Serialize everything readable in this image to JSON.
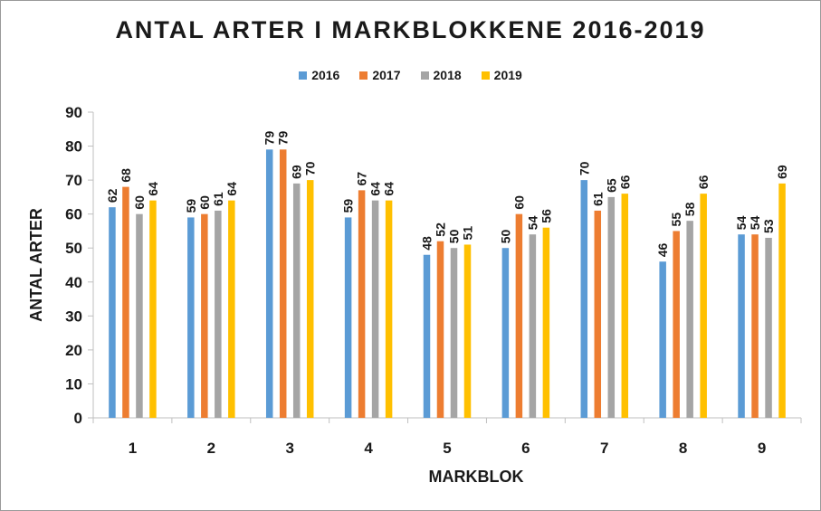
{
  "chart_data": {
    "type": "bar",
    "title": "ANTAL ARTER I MARKBLOKKENE 2016-2019",
    "xlabel": "MARKBLOK",
    "ylabel": "ANTAL ARTER",
    "categories": [
      "1",
      "2",
      "3",
      "4",
      "5",
      "6",
      "7",
      "8",
      "9"
    ],
    "ylim": [
      0,
      90
    ],
    "yticks": [
      0,
      10,
      20,
      30,
      40,
      50,
      60,
      70,
      80,
      90
    ],
    "grid": false,
    "legend_position": "top",
    "series": [
      {
        "name": "2016",
        "color": "#5b9bd5",
        "values": [
          62,
          59,
          79,
          59,
          48,
          50,
          70,
          46,
          54
        ]
      },
      {
        "name": "2017",
        "color": "#ed7d31",
        "values": [
          68,
          60,
          79,
          67,
          52,
          60,
          61,
          55,
          54
        ]
      },
      {
        "name": "2018",
        "color": "#a5a5a5",
        "values": [
          60,
          61,
          69,
          64,
          50,
          54,
          65,
          58,
          53
        ]
      },
      {
        "name": "2019",
        "color": "#ffc000",
        "values": [
          64,
          64,
          70,
          64,
          51,
          56,
          66,
          66,
          69
        ]
      }
    ]
  }
}
